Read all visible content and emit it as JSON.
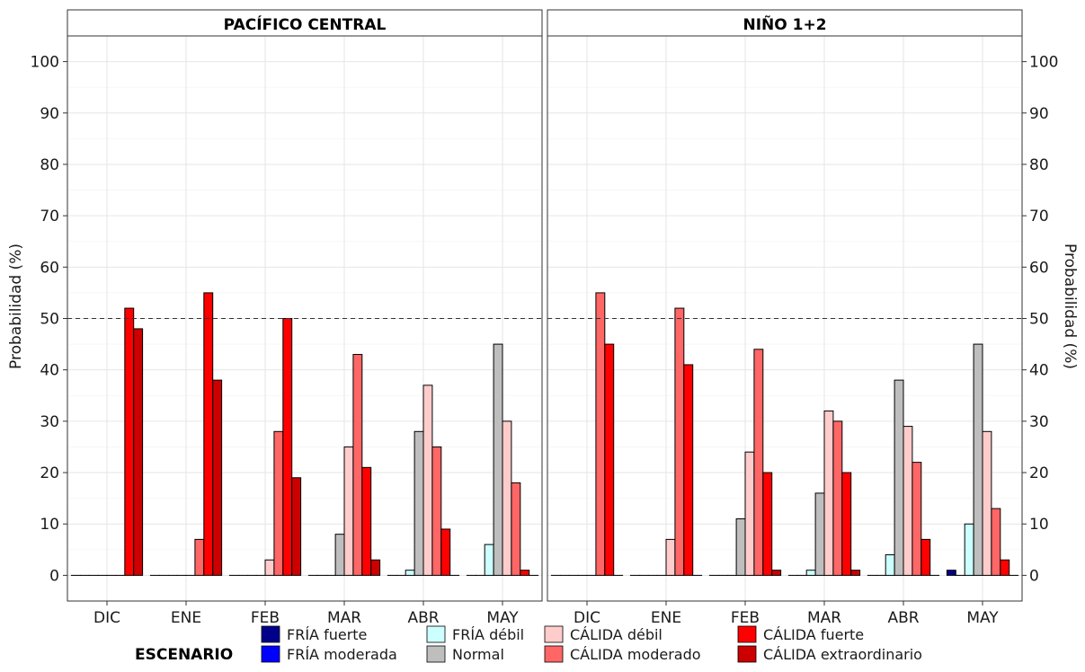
{
  "chart_data": {
    "type": "bar",
    "ylabel": "Probabilidad (%)",
    "ylim": [
      -5,
      105
    ],
    "yticks": [
      0,
      10,
      20,
      30,
      40,
      50,
      60,
      70,
      80,
      90,
      100
    ],
    "reference_line": 50,
    "categories": [
      "DIC",
      "ENE",
      "FEB",
      "MAR",
      "ABR",
      "MAY"
    ],
    "legend": {
      "title": "ESCENARIO",
      "placement": "bottom",
      "columns": [
        [
          {
            "name": "FRÍA fuerte",
            "color": "#00008B"
          },
          {
            "name": "FRÍA moderada",
            "color": "#0000FF"
          }
        ],
        [
          {
            "name": "FRÍA débil",
            "color": "#CCFFFF"
          },
          {
            "name": "Normal",
            "color": "#BEBEBE"
          }
        ],
        [
          {
            "name": "CÁLIDA débil",
            "color": "#FFCCCC"
          },
          {
            "name": "CÁLIDA moderado",
            "color": "#FF6666"
          }
        ],
        [
          {
            "name": "CÁLIDA fuerte",
            "color": "#FF0000"
          },
          {
            "name": "CÁLIDA extraordinario",
            "color": "#CC0000"
          }
        ]
      ]
    },
    "series_names": [
      "FRÍA fuerte",
      "FRÍA moderada",
      "FRÍA débil",
      "Normal",
      "CÁLIDA débil",
      "CÁLIDA moderado",
      "CÁLIDA fuerte",
      "CÁLIDA extraordinario"
    ],
    "series_colors": [
      "#00008B",
      "#0000FF",
      "#CCFFFF",
      "#BEBEBE",
      "#FFCCCC",
      "#FF6666",
      "#FF0000",
      "#CC0000"
    ],
    "panels": [
      {
        "title": "PACÍFICO CENTRAL",
        "values": [
          [
            0,
            0,
            0,
            0,
            0,
            0,
            52,
            48
          ],
          [
            0,
            0,
            0,
            0,
            0,
            7,
            55,
            38
          ],
          [
            0,
            0,
            0,
            0,
            3,
            28,
            50,
            19
          ],
          [
            0,
            0,
            0,
            8,
            25,
            43,
            21,
            3
          ],
          [
            0,
            0,
            1,
            28,
            37,
            25,
            9,
            0
          ],
          [
            0,
            0,
            6,
            45,
            30,
            18,
            1,
            0
          ]
        ]
      },
      {
        "title": "NIÑO 1+2",
        "values": [
          [
            0,
            0,
            0,
            0,
            0,
            55,
            45,
            0
          ],
          [
            0,
            0,
            0,
            0,
            7,
            52,
            41,
            0
          ],
          [
            0,
            0,
            0,
            11,
            24,
            44,
            20,
            1
          ],
          [
            0,
            0,
            1,
            16,
            32,
            30,
            20,
            1
          ],
          [
            0,
            0,
            4,
            38,
            29,
            22,
            7,
            0
          ],
          [
            1,
            0,
            10,
            45,
            28,
            13,
            3,
            0
          ]
        ]
      }
    ]
  }
}
